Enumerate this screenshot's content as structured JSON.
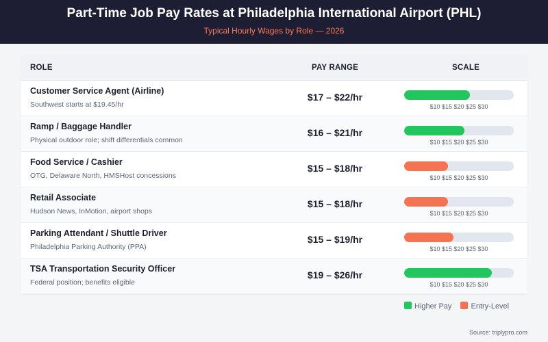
{
  "header": {
    "title": "Part-Time Job Pay Rates at Philadelphia International Airport (PHL)",
    "subtitle": "Typical Hourly Wages by Role — 2026"
  },
  "table": {
    "columns": {
      "role": "ROLE",
      "pay": "PAY RANGE",
      "scale": "SCALE"
    },
    "scale_ticks": "$10 $15 $20 $25 $30",
    "rows": [
      {
        "role": "Customer Service Agent (Airline)",
        "note": "Southwest starts at $19.45/hr",
        "pay": "$17 – $22/hr",
        "category": "higher"
      },
      {
        "role": "Ramp / Baggage Handler",
        "note": "Physical outdoor role; shift differentials common",
        "pay": "$16 – $21/hr",
        "category": "higher"
      },
      {
        "role": "Food Service / Cashier",
        "note": "OTG, Delaware North, HMSHost concessions",
        "pay": "$15 – $18/hr",
        "category": "entry"
      },
      {
        "role": "Retail Associate",
        "note": "Hudson News, InMotion, airport shops",
        "pay": "$15 – $18/hr",
        "category": "entry"
      },
      {
        "role": "Parking Attendant / Shuttle Driver",
        "note": "Philadelphia Parking Authority (PPA)",
        "pay": "$15 – $19/hr",
        "category": "entry"
      },
      {
        "role": "TSA Transportation Security Officer",
        "note": "Federal position; benefits eligible",
        "pay": "$19 – $26/hr",
        "category": "higher"
      }
    ]
  },
  "legend": {
    "higher_label": "Higher Pay",
    "entry_label": "Entry-Level"
  },
  "colors": {
    "higher": "#22c55e",
    "entry": "#f47352",
    "track": "#e2e6ee"
  },
  "source": "Source: triplypro.com",
  "chart_data": {
    "type": "bar",
    "categories": [
      "Customer Service Agent (Airline)",
      "Ramp / Baggage Handler",
      "Food Service / Cashier",
      "Retail Associate",
      "Parking Attendant / Shuttle Driver",
      "TSA Transportation Security Officer"
    ],
    "values": [
      22,
      21,
      18,
      18,
      19,
      26
    ],
    "xlim": [
      10,
      30
    ],
    "tick_labels": [
      "$10",
      "$15",
      "$20",
      "$25",
      "$30"
    ],
    "orientation": "horizontal"
  }
}
